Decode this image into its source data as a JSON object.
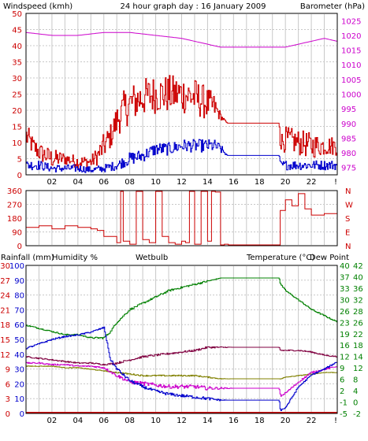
{
  "title": "24 hour graph day : 16 January 2009",
  "colors": {
    "wind": "#cc0000",
    "gust": "#cc0000",
    "avgwind": "#0000cc",
    "baro": "#cc00cc",
    "dir": "#cc0000",
    "rain": "#cc0000",
    "humidity": "#0000cc",
    "wetbulb": "#808000",
    "temperature": "#008000",
    "dewpoint": "#cc00cc",
    "feels": "#800040",
    "grid": "#c8c8c8",
    "axis": "#000000"
  },
  "x_ticks": [
    "02",
    "04",
    "06",
    "08",
    "10",
    "12",
    "14",
    "16",
    "18",
    "20",
    "22"
  ],
  "x_end_label": "!",
  "chart_data": [
    {
      "type": "line",
      "id": "wind-baro",
      "labels": {
        "left": "Windspeed (kmh)",
        "right": "Barometer (hPa)"
      },
      "y_left": {
        "range": [
          0,
          50
        ],
        "ticks": [
          "0",
          "5",
          "10",
          "15",
          "20",
          "25",
          "30",
          "35",
          "40",
          "45",
          "50"
        ]
      },
      "y_right": {
        "range": [
          972.5,
          1027.5
        ],
        "ticks": [
          "975",
          "980",
          "985",
          "990",
          "995",
          "1000",
          "1005",
          "1010",
          "1015",
          "1020",
          "1025"
        ]
      },
      "series": [
        {
          "key": "gust",
          "axis": "left",
          "style": "noisy",
          "x": [
            0,
            0.5,
            1,
            2,
            3,
            4,
            5,
            5.5,
            6,
            6.5,
            7,
            7.5,
            8,
            9,
            10,
            11,
            12,
            13,
            14,
            14.5,
            15,
            15.5,
            16,
            18,
            19.5,
            19.6,
            20,
            21,
            22,
            23,
            24
          ],
          "y": [
            12,
            9,
            7,
            5,
            5,
            4,
            4,
            6,
            9,
            12,
            17,
            20,
            22,
            24,
            25,
            25,
            25,
            24,
            22,
            21,
            18,
            16,
            16,
            16,
            16,
            10,
            11,
            10,
            9,
            9,
            9
          ],
          "amp": [
            4,
            3,
            3,
            3,
            2,
            2,
            2,
            3,
            4,
            4,
            5,
            6,
            6,
            6,
            6,
            6,
            6,
            6,
            5,
            4,
            1,
            0,
            0,
            0,
            0,
            3,
            4,
            4,
            4,
            3,
            3
          ]
        },
        {
          "key": "avgwind",
          "axis": "left",
          "style": "noisy",
          "x": [
            0,
            1,
            2,
            4,
            5,
            6,
            7,
            8,
            9,
            10,
            11,
            12,
            13,
            14,
            14.5,
            15,
            15.5,
            16,
            18,
            19.5,
            19.6,
            20,
            21,
            22,
            23,
            24
          ],
          "y": [
            3,
            3,
            2,
            2,
            1.5,
            2,
            3,
            5,
            6,
            8,
            8,
            9,
            9,
            9,
            9,
            8,
            6,
            6,
            6,
            6,
            3,
            3,
            3,
            3,
            3,
            3
          ],
          "amp": [
            1.5,
            1.5,
            1.2,
            1.2,
            1,
            1.2,
            1.5,
            2,
            2,
            2,
            2,
            2,
            2,
            2,
            2,
            1.5,
            0,
            0,
            0,
            0,
            1.2,
            1.5,
            1.5,
            1.5,
            1.5,
            1.5
          ]
        },
        {
          "key": "baro",
          "axis": "right",
          "style": "smooth",
          "x": [
            0,
            2,
            4,
            6,
            8,
            10,
            12,
            14,
            15,
            16,
            18,
            19.5,
            20,
            22,
            23,
            24
          ],
          "y": [
            1021,
            1020,
            1020,
            1021,
            1021,
            1020,
            1019,
            1017,
            1016,
            1016,
            1016,
            1016,
            1016,
            1018,
            1019,
            1018
          ]
        }
      ]
    },
    {
      "type": "line",
      "id": "direction",
      "labels": {},
      "y_left": {
        "range": [
          0,
          360
        ],
        "ticks": [
          "0",
          "90",
          "180",
          "270",
          "360"
        ]
      },
      "y_right_labels": [
        "N",
        "W",
        "S",
        "E",
        "N"
      ],
      "series": [
        {
          "key": "dir",
          "axis": "left",
          "style": "step",
          "x": [
            0,
            1,
            2,
            3,
            4,
            5,
            5.5,
            6,
            7,
            7.3,
            7.5,
            8,
            8.5,
            9,
            9.5,
            10,
            10.5,
            11,
            11.5,
            12,
            12.3,
            12.6,
            13,
            13.5,
            14,
            14.3,
            14.6,
            15,
            15.3,
            15.6,
            16,
            18,
            19.5,
            19.6,
            20,
            20.5,
            21,
            21.5,
            22,
            23,
            24
          ],
          "y": [
            120,
            130,
            110,
            130,
            120,
            110,
            100,
            60,
            20,
            360,
            30,
            10,
            360,
            40,
            20,
            360,
            60,
            20,
            10,
            30,
            20,
            360,
            10,
            360,
            30,
            360,
            350,
            0,
            10,
            0,
            0,
            0,
            0,
            230,
            300,
            260,
            340,
            240,
            200,
            210,
            200
          ]
        }
      ]
    },
    {
      "type": "line",
      "id": "temp-hum",
      "labels": {
        "rain": "Rainfall (mm)",
        "humidity": "Humidity %",
        "wetbulb": "Wetbulb",
        "temperature": "Temperature (°C)",
        "dewpoint": "Dew Point"
      },
      "y_left_rain": {
        "range": [
          0,
          30
        ],
        "ticks": [
          "0",
          "3",
          "6",
          "9",
          "12",
          "15",
          "18",
          "21",
          "24",
          "27",
          "30"
        ]
      },
      "y_left_hum": {
        "range": [
          0,
          100
        ],
        "ticks": [
          "0",
          "10",
          "20",
          "30",
          "40",
          "50",
          "60",
          "70",
          "80",
          "90",
          "100"
        ]
      },
      "y_right_temp": {
        "range": [
          -5,
          42
        ],
        "ticks": [
          "-5",
          "-1",
          "2",
          "6",
          "9",
          "12",
          "16",
          "19",
          "23",
          "26",
          "30",
          "33",
          "37",
          "40"
        ]
      },
      "y_right_outer": {
        "ticks": [
          "-2",
          "0",
          "4",
          "8",
          "12",
          "14",
          "18",
          "22",
          "26",
          "28",
          "32",
          "36",
          "40",
          "42"
        ]
      },
      "series": [
        {
          "key": "temperature",
          "axis": "temp",
          "style": "noisy",
          "x": [
            0,
            1,
            2,
            3,
            4,
            5,
            6,
            6.5,
            7,
            8,
            9,
            10,
            11,
            12,
            13,
            14,
            15,
            16,
            17,
            18,
            19.5,
            19.6,
            20,
            21,
            22,
            23,
            24
          ],
          "y": [
            23,
            22,
            21,
            20,
            20,
            19,
            19,
            21,
            24,
            28,
            30,
            32,
            34,
            35,
            36,
            37,
            38,
            38,
            38,
            38,
            38,
            36,
            34,
            31,
            28,
            26,
            24
          ],
          "amp": [
            0.2,
            0.2,
            0.2,
            0.2,
            0.2,
            0.2,
            0.3,
            0.3,
            0.3,
            0.3,
            0.3,
            0.3,
            0.3,
            0.3,
            0.3,
            0.3,
            0,
            0,
            0,
            0,
            0,
            0.2,
            0.2,
            0.2,
            0.2,
            0.2,
            0.2
          ]
        },
        {
          "key": "humidity",
          "axis": "hum",
          "style": "noisy",
          "x": [
            0,
            1,
            2,
            3,
            4,
            5,
            6,
            6.5,
            7,
            8,
            9,
            10,
            11,
            12,
            13,
            14,
            15,
            15.5,
            16,
            18,
            19.5,
            19.6,
            20,
            21,
            22,
            23,
            24
          ],
          "y": [
            44,
            47,
            50,
            52,
            53,
            55,
            58,
            36,
            30,
            22,
            18,
            15,
            13,
            12,
            11,
            10,
            9,
            9,
            9,
            9,
            9,
            2,
            4,
            18,
            26,
            30,
            35
          ],
          "amp": [
            0.5,
            0.5,
            0.5,
            0.5,
            0.5,
            0.5,
            0.5,
            1,
            1,
            1,
            1,
            1,
            1,
            1,
            1,
            1,
            0.5,
            0,
            0,
            0,
            0,
            0.5,
            0.5,
            0.5,
            0.5,
            0.5,
            0.5
          ]
        },
        {
          "key": "dewpoint",
          "axis": "temp",
          "style": "noisy",
          "x": [
            0,
            1,
            2,
            3,
            4,
            5,
            6,
            7,
            8,
            9,
            10,
            11,
            12,
            13,
            14,
            15,
            16,
            18,
            19.5,
            19.6,
            20,
            21,
            22,
            23,
            24
          ],
          "y": [
            11,
            11,
            10.5,
            10.5,
            10,
            10,
            9.5,
            7,
            5,
            4.5,
            4,
            3.5,
            3.5,
            3.5,
            3,
            3,
            3,
            3,
            3,
            0.5,
            1.5,
            5,
            8,
            9,
            10
          ],
          "amp": [
            0.2,
            0.2,
            0.2,
            0.2,
            0.2,
            0.2,
            0.3,
            0.5,
            0.6,
            0.6,
            0.6,
            0.6,
            0.6,
            0.6,
            0.6,
            0.3,
            0,
            0,
            0,
            0.2,
            0.3,
            0.3,
            0.3,
            0.2,
            0.2
          ]
        },
        {
          "key": "wetbulb",
          "axis": "temp",
          "style": "noisy",
          "x": [
            0,
            1,
            2,
            3,
            4,
            5,
            6,
            7,
            8,
            9,
            10,
            11,
            12,
            13,
            14,
            15,
            16,
            18,
            19.5,
            19.6,
            20,
            21,
            22,
            23,
            24
          ],
          "y": [
            10,
            10,
            10,
            9.5,
            9.5,
            9,
            8.5,
            8,
            7.5,
            7,
            7,
            7,
            7,
            7,
            6.5,
            6,
            6,
            6,
            6,
            6,
            6.5,
            7,
            7.5,
            8,
            8
          ],
          "amp": [
            0.1,
            0.1,
            0.1,
            0.1,
            0.1,
            0.1,
            0.1,
            0.2,
            0.2,
            0.2,
            0.2,
            0.2,
            0.2,
            0.2,
            0.2,
            0.1,
            0,
            0,
            0,
            0.1,
            0.1,
            0.1,
            0.1,
            0.1,
            0.1
          ]
        },
        {
          "key": "feels",
          "axis": "temp",
          "style": "noisy",
          "x": [
            0,
            1,
            2,
            3,
            4,
            5,
            6,
            7,
            8,
            9,
            10,
            11,
            12,
            13,
            14,
            15,
            16,
            18,
            19.5,
            19.6,
            20,
            21,
            22,
            23,
            24
          ],
          "y": [
            13,
            12.5,
            12,
            11.5,
            11,
            11,
            10.5,
            11,
            12,
            13,
            13.5,
            14,
            14.5,
            15,
            16,
            16,
            16,
            16,
            16,
            15,
            15,
            15,
            14.5,
            13.5,
            13
          ],
          "amp": [
            0.2,
            0.2,
            0.2,
            0.2,
            0.2,
            0.2,
            0.2,
            0.3,
            0.3,
            0.3,
            0.3,
            0.3,
            0.3,
            0.3,
            0.3,
            0.2,
            0,
            0,
            0,
            0.2,
            0.2,
            0.2,
            0.2,
            0.2,
            0.2
          ]
        },
        {
          "key": "rain",
          "axis": "rain",
          "style": "step",
          "x": [
            0,
            24
          ],
          "y": [
            0,
            0
          ]
        }
      ]
    }
  ]
}
